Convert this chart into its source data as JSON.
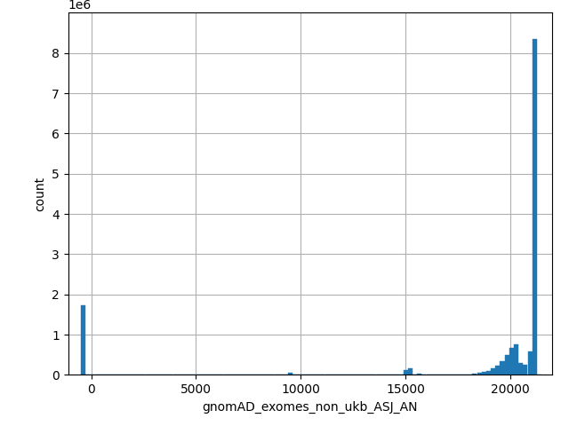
{
  "xlabel": "gnomAD_exomes_non_ukb_ASJ_AN",
  "ylabel": "count",
  "bar_color": "#1f77b4",
  "xlim": [
    -1100,
    22000
  ],
  "ylim": [
    0,
    9000000
  ],
  "figsize": [
    6.4,
    4.8
  ],
  "dpi": 100,
  "xticks": [
    0,
    5000,
    10000,
    15000,
    20000
  ],
  "yticks": [
    0,
    1000000,
    2000000,
    3000000,
    4000000,
    5000000,
    6000000,
    7000000,
    8000000
  ],
  "grid_color": "#b0b0b0",
  "grid_linewidth": 0.8,
  "bin_edges": [
    -500,
    -280,
    -60,
    160,
    380,
    600,
    820,
    1040,
    1260,
    1480,
    1700,
    1920,
    2140,
    2360,
    2580,
    2800,
    3020,
    3240,
    3460,
    3680,
    3900,
    4120,
    4340,
    4560,
    4780,
    5000,
    5220,
    5440,
    5660,
    5880,
    6100,
    6320,
    6540,
    6760,
    6980,
    7200,
    7420,
    7640,
    7860,
    8080,
    8300,
    8520,
    8740,
    8960,
    9180,
    9400,
    9620,
    9840,
    10060,
    10280,
    10500,
    10720,
    10940,
    11160,
    11380,
    11600,
    11820,
    12040,
    12260,
    12480,
    12700,
    12920,
    13140,
    13360,
    13580,
    13800,
    14020,
    14240,
    14460,
    14680,
    14900,
    15120,
    15340,
    15560,
    15780,
    16000,
    16220,
    16440,
    16660,
    16880,
    17100,
    17320,
    17540,
    17760,
    17980,
    18200,
    18420,
    18640,
    18860,
    19080,
    19300,
    19520,
    19740,
    19960,
    20180,
    20400,
    20620,
    20840,
    21060,
    21280,
    21500
  ],
  "counts": [
    1720000,
    0,
    0,
    0,
    0,
    0,
    0,
    0,
    0,
    0,
    0,
    0,
    0,
    0,
    0,
    0,
    0,
    0,
    0,
    0,
    0,
    0,
    0,
    0,
    0,
    0,
    0,
    0,
    0,
    0,
    0,
    0,
    0,
    0,
    0,
    0,
    0,
    0,
    0,
    0,
    0,
    0,
    0,
    0,
    0,
    50000,
    0,
    0,
    5000,
    0,
    0,
    0,
    0,
    0,
    0,
    0,
    0,
    0,
    0,
    0,
    0,
    0,
    0,
    0,
    0,
    0,
    0,
    0,
    15000,
    0,
    130000,
    160000,
    0,
    30000,
    0,
    0,
    0,
    0,
    0,
    0,
    0,
    0,
    0,
    0,
    10000,
    30000,
    50000,
    70000,
    100000,
    170000,
    220000,
    330000,
    500000,
    680000,
    750000,
    300000,
    250000,
    580000,
    8350000,
    0
  ]
}
